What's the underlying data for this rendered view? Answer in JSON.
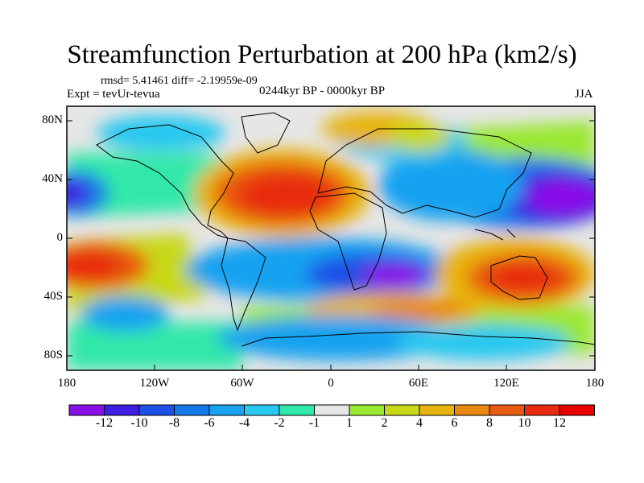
{
  "figure": {
    "title": "Streamfunction Perturbation at 200 hPa (km2/s)",
    "stats": "rmsd= 5.41461 diff= -2.19959e-09",
    "experiment": "Expt = tevUr-tevua",
    "period": "0244kyr BP - 0000kyr BP",
    "season": "JJA"
  },
  "map": {
    "projection": "cylindrical equidistant",
    "lon_range": [
      -180,
      180
    ],
    "lat_range": [
      -90,
      90
    ],
    "y_tick_labels": [
      "80N",
      "40N",
      "0",
      "40S",
      "80S"
    ],
    "x_tick_labels": [
      "180",
      "120W",
      "60W",
      "0",
      "60E",
      "120E",
      "180"
    ],
    "coastlines": "black outline"
  },
  "colorbar": {
    "labels": [
      "-12",
      "-10",
      "-8",
      "-6",
      "-4",
      "-2",
      "-1",
      "1",
      "2",
      "4",
      "6",
      "8",
      "10",
      "12"
    ],
    "colors": [
      "#8a10e8",
      "#3c1fe0",
      "#1e4fe6",
      "#1479e8",
      "#18a2f0",
      "#28c8f0",
      "#30e8a8",
      "#e6e6e6",
      "#9ae830",
      "#c8d818",
      "#e8b410",
      "#e88810",
      "#e85a10",
      "#e82a10",
      "#e80000"
    ]
  },
  "features": [
    {
      "name": "Strong positive anomaly over North Africa / North Atlantic",
      "value": 12,
      "lon": -30,
      "lat": 32
    },
    {
      "name": "Strong negative anomaly over Northwest Pacific",
      "value": -12,
      "lon": 155,
      "lat": 30
    },
    {
      "name": "Negative anomaly over Southern Africa / Indian Ocean",
      "value": -11,
      "lon": 40,
      "lat": -28
    },
    {
      "name": "Positive anomaly over Australia",
      "value": 10,
      "lon": 135,
      "lat": -28
    },
    {
      "name": "Positive anomaly over South Pacific",
      "value": 10,
      "lon": -160,
      "lat": -25
    },
    {
      "name": "Negative anomaly over Northeast Pacific",
      "value": -10,
      "lon": -175,
      "lat": 36
    },
    {
      "name": "Negative anomaly over Eastern Asia",
      "value": -8,
      "lon": 100,
      "lat": 30
    },
    {
      "name": "Negative anomaly over Southern Ocean",
      "value": -5,
      "lon": 0,
      "lat": -62
    },
    {
      "name": "Positive anomaly over South Atlantic",
      "value": 4,
      "lon": 20,
      "lat": -45
    },
    {
      "name": "Positive anomaly over North Pacific",
      "value": 4,
      "lon": 170,
      "lat": 60
    }
  ]
}
